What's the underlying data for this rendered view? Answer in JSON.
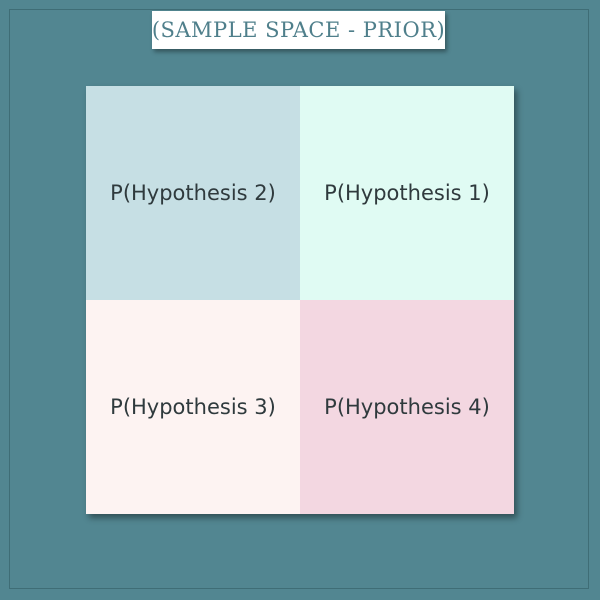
{
  "title": "(SAMPLE SPACE - PRIOR)",
  "colors": {
    "background": "#528691",
    "title_box": "#ffffff",
    "title_text": "#4f7f8b",
    "cell_top_left": "#c6dfe4",
    "cell_top_right": "#e0fbf3",
    "cell_bottom_left": "#fdf3f2",
    "cell_bottom_right": "#f3d7e1"
  },
  "cells": [
    {
      "label": "P(Hypothesis 2)"
    },
    {
      "label": "P(Hypothesis 1)"
    },
    {
      "label": "P(Hypothesis 3)"
    },
    {
      "label": "P(Hypothesis 4)"
    }
  ]
}
